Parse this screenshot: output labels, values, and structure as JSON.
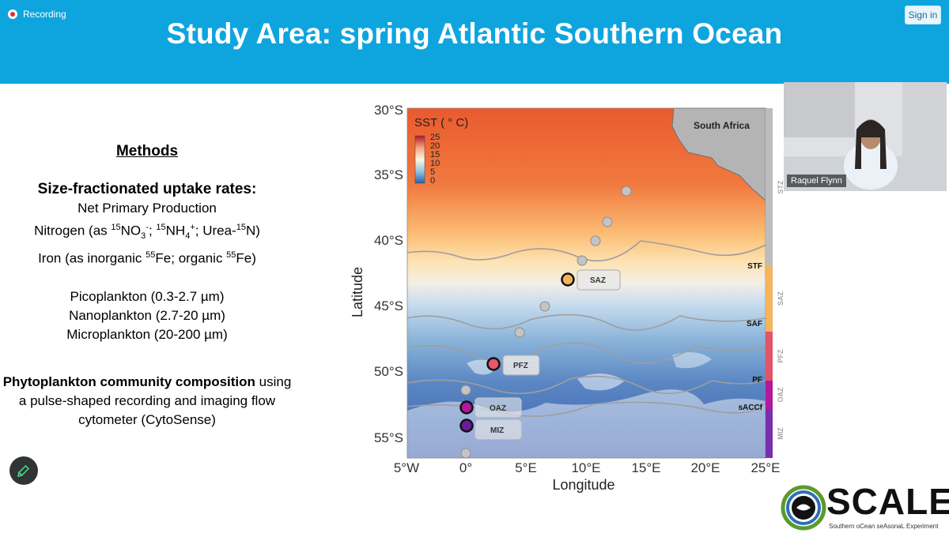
{
  "app": {
    "recording_label": "Recording",
    "signin_label": "Sign in"
  },
  "slide": {
    "title": "Study Area: spring Atlantic Southern Ocean",
    "methods": {
      "heading": "Methods",
      "uptake_heading": "Size-fractionated uptake rates:",
      "npp": "Net Primary Production",
      "nitrogen_a": "Nitrogen (as ",
      "nitrogen_b": "NO",
      "nitrogen_c": "; ",
      "nitrogen_d": "NH",
      "nitrogen_e": "; Urea-",
      "nitrogen_f": "N)",
      "iron_a": "Iron (as inorganic ",
      "iron_b": "Fe; organic ",
      "iron_c": "Fe)",
      "iso15": "15",
      "iso55": "55",
      "sub3": "3",
      "sub4": "4",
      "minus": "-",
      "plus": "+",
      "pico": "Picoplankton (0.3-2.7 µm)",
      "nano": "Nanoplankton (2.7-20 µm)",
      "micro": "Microplankton (20-200 µm)",
      "phyto_bold": "Phytoplankton community composition",
      "phyto_rest": " using a pulse-shaped recording and imaging flow cytometer (CytoSense)"
    },
    "map": {
      "sst_label": "SST ( ° C)",
      "colorbar_ticks": [
        "25",
        "20",
        "15",
        "10",
        "5",
        "0"
      ],
      "y_ticks": [
        "30°S",
        "35°S",
        "40°S",
        "45°S",
        "50°S",
        "55°S"
      ],
      "x_ticks": [
        "5°W",
        "0°",
        "5°E",
        "10°E",
        "15°E",
        "20°E",
        "25°E"
      ],
      "xlabel": "Longitude",
      "ylabel": "Latitude",
      "land_label": "South Africa",
      "stations": [
        {
          "label": "SAZ",
          "color": "#f2b25e"
        },
        {
          "label": "PFZ",
          "color": "#e8566a"
        },
        {
          "label": "OAZ",
          "color": "#b0179a"
        },
        {
          "label": "MIZ",
          "color": "#6b1a9c"
        }
      ],
      "fronts": [
        "STF",
        "SAF",
        "PF",
        "sACCf"
      ],
      "zones": [
        {
          "label": "STZ",
          "color": "#bdbdbd"
        },
        {
          "label": "SAZ",
          "color": "#f4b55c"
        },
        {
          "label": "PFZ",
          "color": "#e25468"
        },
        {
          "label": "OAZ",
          "color": "#b3179e"
        },
        {
          "label": "MIZ",
          "color": "#7a2eb0"
        }
      ]
    },
    "logo": {
      "name": "SCALE",
      "tagline": "Southern oCean seAsonaL Experiment"
    }
  },
  "participant": {
    "name": "Raquel Flynn"
  },
  "icons": {
    "recording": "recording-dot-icon",
    "annotate": "pencil-icon"
  }
}
